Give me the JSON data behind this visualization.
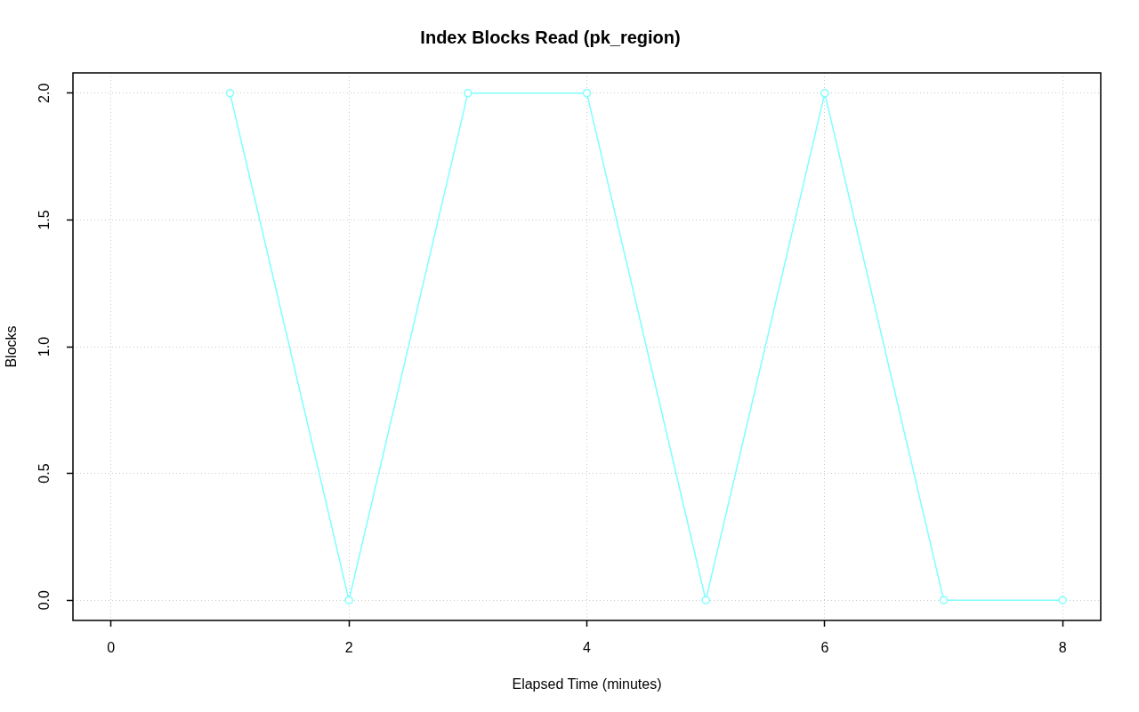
{
  "chart_data": {
    "type": "line",
    "title": "Index Blocks Read (pk_region)",
    "xlabel": "Elapsed Time (minutes)",
    "ylabel": "Blocks",
    "x": [
      1,
      2,
      3,
      4,
      5,
      6,
      7,
      8
    ],
    "series": [
      {
        "color": "#7fffff",
        "values": [
          2,
          0,
          2,
          2,
          0,
          2,
          0,
          0
        ]
      }
    ],
    "xlim": [
      -0.32,
      8.32
    ],
    "xticks": [
      0,
      2,
      4,
      6,
      8
    ],
    "ylim": [
      -0.08,
      2.08
    ],
    "yticks": [
      {
        "value": 0,
        "label": "0.0"
      },
      {
        "value": 0.5,
        "label": "0.5"
      },
      {
        "value": 1,
        "label": "1.0"
      },
      {
        "value": 1.5,
        "label": "1.5"
      },
      {
        "value": 2,
        "label": "2.0"
      }
    ],
    "grid": true,
    "marker": "circle",
    "line_style": "solid",
    "legend": false
  }
}
